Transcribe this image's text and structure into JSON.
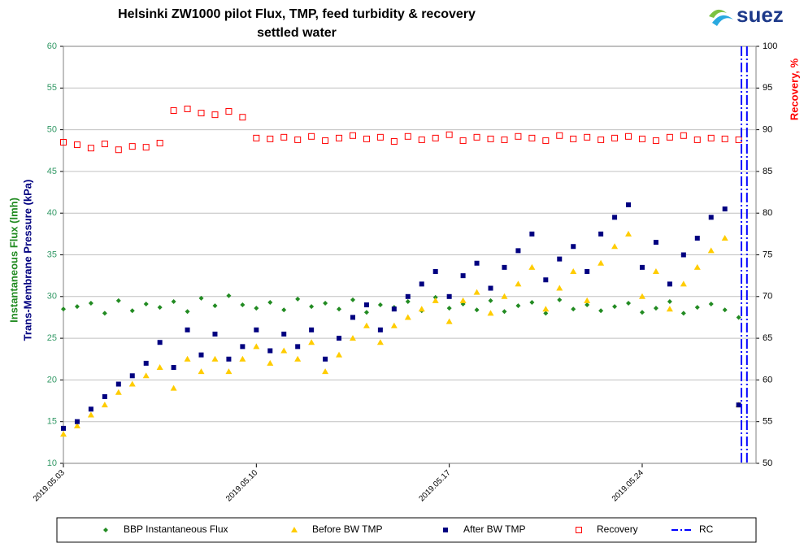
{
  "chart_data": {
    "type": "scatter",
    "title": "Helsinki ZW1000 pilot Flux, TMP, feed turbidity & recovery",
    "subtitle": "settled water",
    "logo_text": "suez",
    "y_label_1": "Instantaneous Flux (lmh)",
    "y_label_2": "Trans-Membrane Pressure (kPa)",
    "y2_label": "Recovery, %",
    "xlim": [
      3,
      28.13
    ],
    "xticks": [
      {
        "value": 3,
        "label": "2019.05.03"
      },
      {
        "value": 10,
        "label": "2019.05.10"
      },
      {
        "value": 17,
        "label": "2019.05.17"
      },
      {
        "value": 24,
        "label": "2019.05.24"
      }
    ],
    "ylim": [
      10,
      60
    ],
    "yticks": [
      10,
      15,
      20,
      25,
      30,
      35,
      40,
      45,
      50,
      55,
      60
    ],
    "y2lim": [
      50,
      100
    ],
    "y2ticks": [
      50,
      55,
      60,
      65,
      70,
      75,
      80,
      85,
      90,
      95,
      100
    ],
    "grid": true,
    "legend": "bottom",
    "x": [
      3,
      3.5,
      4,
      4.5,
      5,
      5.5,
      6,
      6.5,
      7,
      7.5,
      8,
      8.5,
      9,
      9.5,
      10,
      10.5,
      11,
      11.5,
      12,
      12.5,
      13,
      13.5,
      14,
      14.5,
      15,
      15.5,
      16,
      16.5,
      17,
      17.5,
      18,
      18.5,
      19,
      19.5,
      20,
      20.5,
      21,
      21.5,
      22,
      22.5,
      23,
      23.5,
      24,
      24.5,
      25,
      25.5,
      26,
      26.5,
      27,
      27.5
    ],
    "series": [
      {
        "name": "BBP Instantaneous Flux",
        "color": "#228b22",
        "marker": "diamond",
        "values": [
          28.5,
          28.8,
          29.2,
          28.0,
          29.5,
          28.3,
          29.1,
          28.7,
          29.4,
          28.2,
          29.8,
          28.9,
          30.1,
          29.0,
          28.6,
          29.3,
          28.4,
          29.7,
          28.8,
          29.2,
          28.5,
          29.6,
          28.1,
          29.0,
          28.7,
          29.4,
          28.3,
          29.9,
          28.6,
          29.1,
          28.4,
          29.5,
          28.2,
          28.9,
          29.3,
          28.0,
          29.6,
          28.5,
          29.0,
          28.3,
          28.8,
          29.2,
          28.1,
          28.6,
          29.4,
          28.0,
          28.7,
          29.1,
          28.4,
          27.5
        ]
      },
      {
        "name": "Before BW TMP",
        "color": "#ffcc00",
        "marker": "triangle",
        "values": [
          13.5,
          14.5,
          15.8,
          17.0,
          18.5,
          19.5,
          20.5,
          21.5,
          19.0,
          22.5,
          21.0,
          22.5,
          21.0,
          22.5,
          24.0,
          22.0,
          23.5,
          22.5,
          24.5,
          21.0,
          23.0,
          25.0,
          26.5,
          24.5,
          26.5,
          27.5,
          28.5,
          29.5,
          27.0,
          29.5,
          30.5,
          28.0,
          30.0,
          31.5,
          33.5,
          28.5,
          31.0,
          33.0,
          29.5,
          34.0,
          36.0,
          37.5,
          30.0,
          33.0,
          28.5,
          31.5,
          33.5,
          35.5,
          37.0,
          17.0
        ]
      },
      {
        "name": "After BW TMP",
        "color": "#000080",
        "marker": "square",
        "values": [
          14.2,
          15.0,
          16.5,
          18.0,
          19.5,
          20.5,
          22.0,
          24.5,
          21.5,
          26.0,
          23.0,
          25.5,
          22.5,
          24.0,
          26.0,
          23.5,
          25.5,
          24.0,
          26.0,
          22.5,
          25.0,
          27.5,
          29.0,
          26.0,
          28.5,
          30.0,
          31.5,
          33.0,
          30.0,
          32.5,
          34.0,
          31.0,
          33.5,
          35.5,
          37.5,
          32.0,
          34.5,
          36.0,
          33.0,
          37.5,
          39.5,
          41.0,
          33.5,
          36.5,
          31.5,
          35.0,
          37.0,
          39.5,
          40.5,
          17.0
        ]
      },
      {
        "name": "Recovery",
        "color": "#ff0000",
        "marker": "open-square",
        "axis": "y2",
        "values": [
          88.5,
          88.2,
          87.8,
          88.3,
          87.6,
          88.0,
          87.9,
          88.4,
          92.3,
          92.5,
          92.0,
          91.8,
          92.2,
          91.5,
          89.0,
          88.9,
          89.1,
          88.8,
          89.2,
          88.7,
          89.0,
          89.3,
          88.9,
          89.1,
          88.6,
          89.2,
          88.8,
          89.0,
          89.4,
          88.7,
          89.1,
          88.9,
          88.8,
          89.2,
          89.0,
          88.7,
          89.3,
          88.9,
          89.1,
          88.8,
          89.0,
          89.2,
          88.9,
          88.7,
          89.1,
          89.3,
          88.8,
          89.0,
          88.9,
          88.8
        ]
      },
      {
        "name": "RC",
        "color": "#0000ff",
        "marker": "dash-dot",
        "x": [
          27.6,
          27.8
        ]
      }
    ]
  }
}
